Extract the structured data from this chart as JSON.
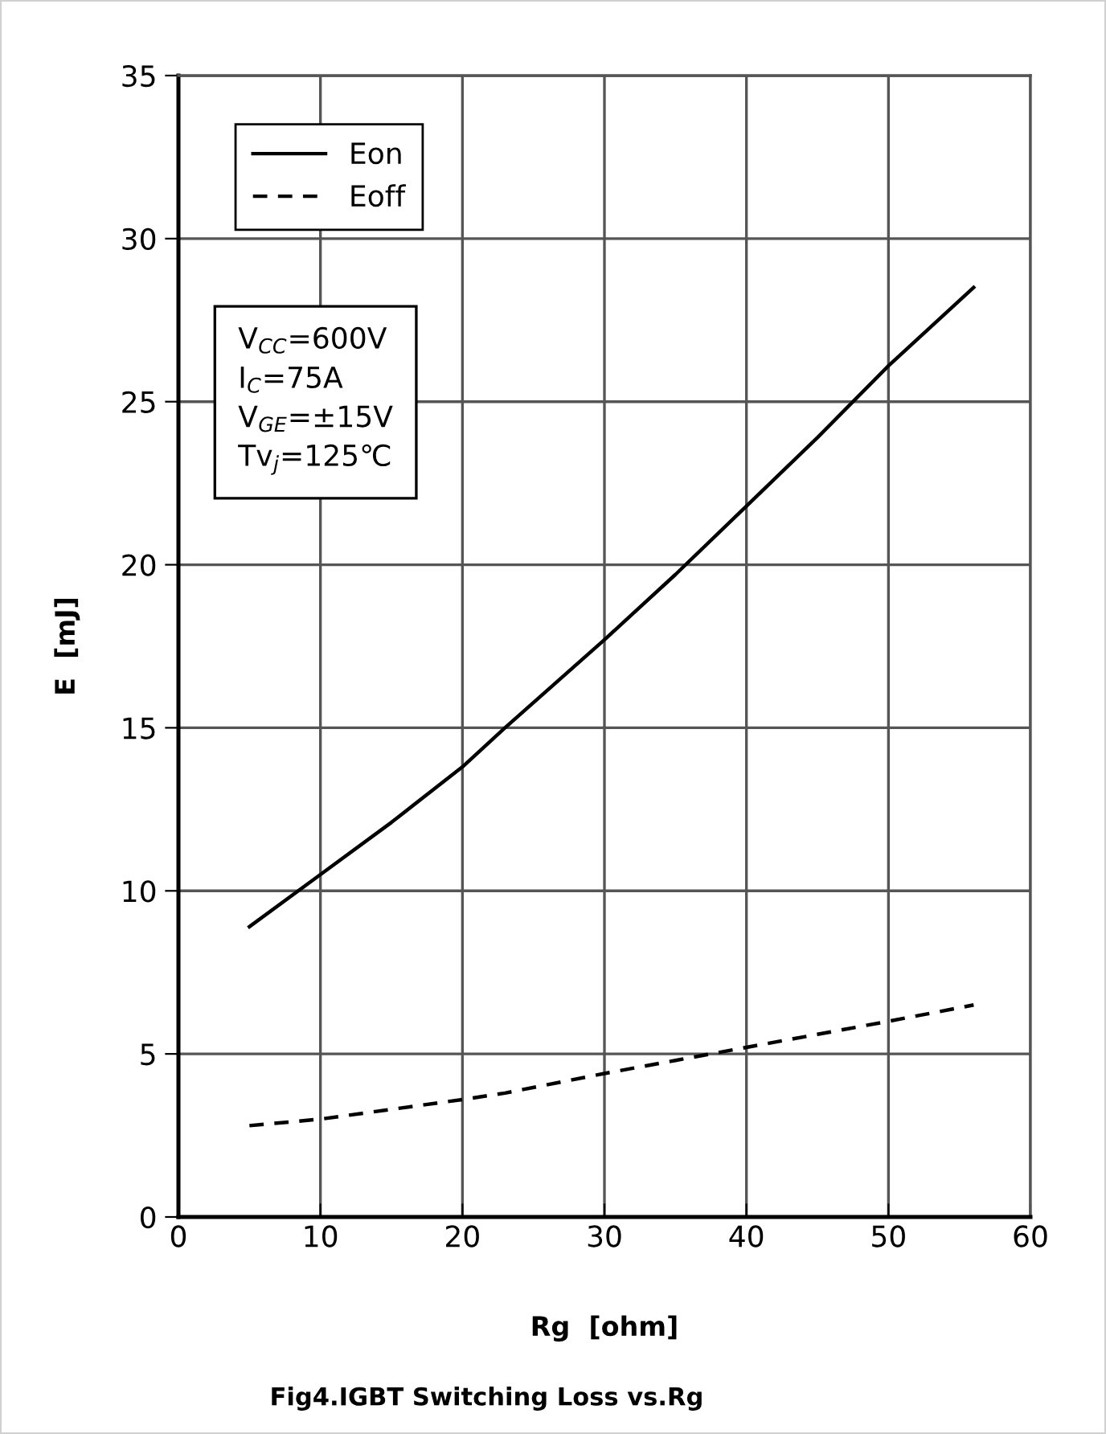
{
  "chart_data": {
    "type": "line",
    "title": "Fig4.IGBT Switching Loss vs.Rg",
    "xlabel": "Rg  [ohm]",
    "ylabel": "E  [mJ]",
    "x": [
      5,
      10,
      15,
      20,
      23,
      30,
      35,
      40,
      45,
      50,
      56
    ],
    "series": [
      {
        "name": "Eon",
        "color": "#000000",
        "line_style": "solid",
        "values": [
          8.9,
          10.5,
          12.1,
          13.8,
          15.0,
          17.7,
          19.7,
          21.8,
          23.9,
          26.1,
          28.5
        ]
      },
      {
        "name": "Eoff",
        "color": "#000000",
        "line_style": "dashed",
        "values": [
          2.8,
          3.0,
          3.3,
          3.6,
          3.8,
          4.4,
          4.8,
          5.2,
          5.6,
          6.0,
          6.5
        ]
      }
    ],
    "annotations": [
      "V$_{CC}$=600V\nI$_{C}$=75A\nV$_{GE}$=±15V\nTv$_{j}$=125℃"
    ],
    "xlim": [
      0,
      60
    ],
    "xticks": [
      0,
      10,
      20,
      30,
      40,
      50,
      60
    ],
    "ylim": [
      0,
      35
    ],
    "yticks": [
      0,
      5,
      10,
      15,
      20,
      25,
      30,
      35
    ],
    "grid": true,
    "legend": "top left",
    "marker": "none"
  }
}
